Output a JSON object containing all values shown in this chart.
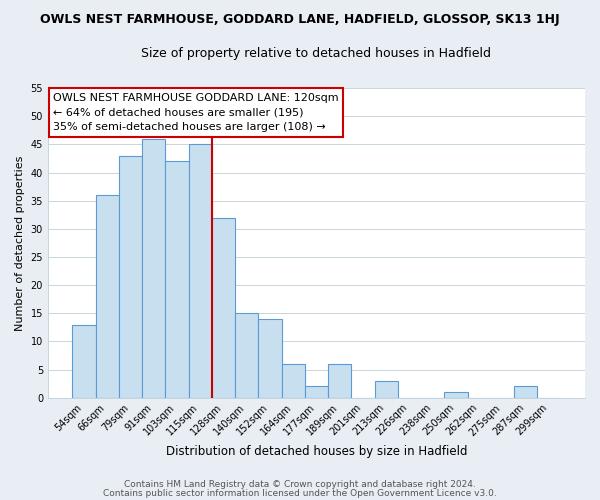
{
  "title": "OWLS NEST FARMHOUSE, GODDARD LANE, HADFIELD, GLOSSOP, SK13 1HJ",
  "subtitle": "Size of property relative to detached houses in Hadfield",
  "xlabel": "Distribution of detached houses by size in Hadfield",
  "ylabel": "Number of detached properties",
  "bar_labels": [
    "54sqm",
    "66sqm",
    "79sqm",
    "91sqm",
    "103sqm",
    "115sqm",
    "128sqm",
    "140sqm",
    "152sqm",
    "164sqm",
    "177sqm",
    "189sqm",
    "201sqm",
    "213sqm",
    "226sqm",
    "238sqm",
    "250sqm",
    "262sqm",
    "275sqm",
    "287sqm",
    "299sqm"
  ],
  "bar_values": [
    13,
    36,
    43,
    46,
    42,
    45,
    32,
    15,
    14,
    6,
    2,
    6,
    0,
    3,
    0,
    0,
    1,
    0,
    0,
    2,
    0
  ],
  "bar_color": "#c8dff0",
  "bar_edgecolor": "#5b9bd5",
  "vline_x": 6,
  "vline_color": "#cc0000",
  "ylim": [
    0,
    55
  ],
  "yticks": [
    0,
    5,
    10,
    15,
    20,
    25,
    30,
    35,
    40,
    45,
    50,
    55
  ],
  "annotation_title": "OWLS NEST FARMHOUSE GODDARD LANE: 120sqm",
  "annotation_line1": "← 64% of detached houses are smaller (195)",
  "annotation_line2": "35% of semi-detached houses are larger (108) →",
  "footer1": "Contains HM Land Registry data © Crown copyright and database right 2024.",
  "footer2": "Contains public sector information licensed under the Open Government Licence v3.0.",
  "background_color": "#e8eef4",
  "plot_bg_color": "#ffffff",
  "grid_color": "#c0cfd8"
}
